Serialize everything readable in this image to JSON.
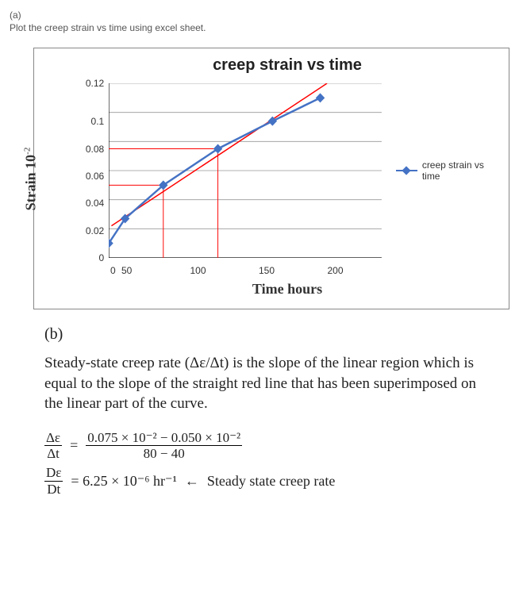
{
  "partA": {
    "label": "(a)",
    "instruction": "Plot the creep strain vs time using excel sheet."
  },
  "chart": {
    "type": "line",
    "title": "creep strain vs time",
    "xlabel": "Time hours",
    "ylabel_main": "Strain",
    "ylabel_exp": "10",
    "ylabel_sup": "-2",
    "xlim": [
      0,
      200
    ],
    "ylim": [
      0,
      0.12
    ],
    "xticks": [
      0,
      50,
      100,
      150,
      200
    ],
    "yticks": [
      0,
      0.02,
      0.04,
      0.06,
      0.08,
      0.1,
      0.12
    ],
    "series_points": [
      {
        "x": 0,
        "y": 0.01
      },
      {
        "x": 12,
        "y": 0.027
      },
      {
        "x": 40,
        "y": 0.05
      },
      {
        "x": 80,
        "y": 0.075
      },
      {
        "x": 120,
        "y": 0.094
      },
      {
        "x": 155,
        "y": 0.11
      }
    ],
    "trend_line": {
      "x0": 2,
      "y0": 0.022,
      "x1": 160,
      "y1": 0.12
    },
    "ref_lines": [
      {
        "x": 40,
        "y": 0.05
      },
      {
        "x": 80,
        "y": 0.075
      }
    ],
    "series_color": "#4472c4",
    "trend_color": "#ff0000",
    "ref_color": "#ff0000",
    "grid_color": "#999999",
    "axis_color": "#000000",
    "background_color": "#ffffff",
    "line_width": 2.5,
    "marker_size": 6,
    "legend_label": "creep strain vs time",
    "legend_position": "right-middle",
    "title_fontsize": 20,
    "label_fontsize": 18,
    "tick_fontsize": 12
  },
  "partB": {
    "label": "(b)",
    "text": "Steady-state creep rate (Δε/Δt) is the slope of the linear region which is equal to the slope of the straight red line that has been superimposed on the linear part of the curve.",
    "eq1_lhs_num": "Δε",
    "eq1_lhs_den": "Δt",
    "eq1_rhs_num": "0.075 × 10⁻² − 0.050 × 10⁻²",
    "eq1_rhs_den": "80 − 40",
    "eq2_lhs_num": "Dε",
    "eq2_lhs_den": "Dt",
    "eq2_rhs": "= 6.25 × 10⁻⁶ hr⁻¹",
    "eq2_note": "Steady state creep rate",
    "equals": "="
  }
}
